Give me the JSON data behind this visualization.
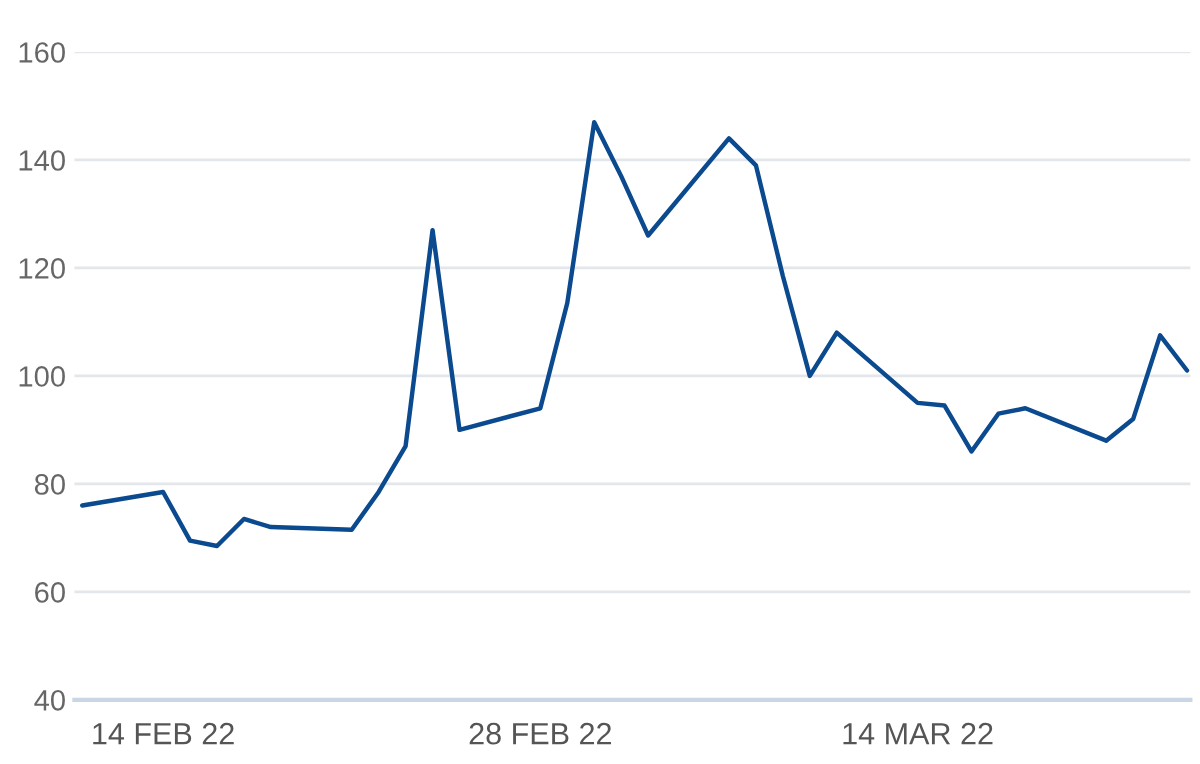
{
  "chart_data": {
    "type": "line",
    "x": [
      "2022-02-11",
      "2022-02-14",
      "2022-02-15",
      "2022-02-16",
      "2022-02-17",
      "2022-02-18",
      "2022-02-21",
      "2022-02-22",
      "2022-02-23",
      "2022-02-24",
      "2022-02-25",
      "2022-02-28",
      "2022-03-01",
      "2022-03-02",
      "2022-03-03",
      "2022-03-04",
      "2022-03-07",
      "2022-03-08",
      "2022-03-09",
      "2022-03-10",
      "2022-03-11",
      "2022-03-14",
      "2022-03-15",
      "2022-03-16",
      "2022-03-17",
      "2022-03-18",
      "2022-03-21",
      "2022-03-22",
      "2022-03-23",
      "2022-03-24"
    ],
    "series": [
      {
        "color": "#0b4a8e",
        "values": [
          76,
          78.5,
          69.5,
          68.5,
          73.5,
          72,
          71.5,
          78.5,
          87,
          127,
          90,
          94,
          113.5,
          147,
          137,
          126,
          144,
          139,
          118.5,
          100,
          108,
          95,
          94.5,
          86,
          93,
          94,
          88,
          92,
          107.5,
          101
        ]
      }
    ],
    "xlim": [
      "2022-02-10T17:00",
      "2022-03-24T03:00"
    ],
    "xticks": [
      {
        "value": "2022-02-14",
        "label": "14 FEB 22"
      },
      {
        "value": "2022-02-28",
        "label": "28 FEB 22"
      },
      {
        "value": "2022-03-14",
        "label": "14 MAR 22"
      }
    ],
    "ylim": [
      40,
      160
    ],
    "yticks": [
      40,
      60,
      80,
      100,
      120,
      140,
      160
    ],
    "grid": "y",
    "legend": false,
    "marker": "none",
    "line_style": "solid"
  }
}
